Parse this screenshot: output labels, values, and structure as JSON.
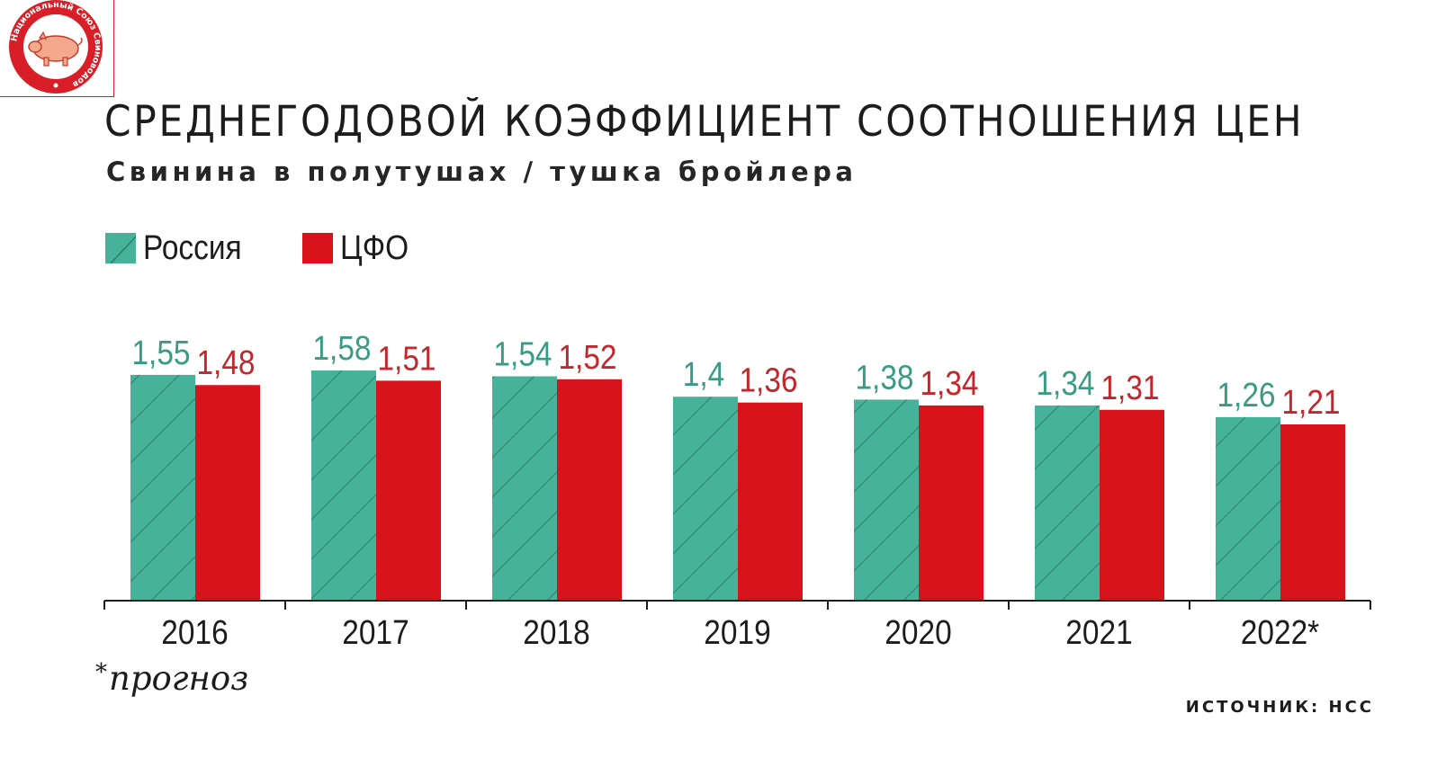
{
  "logo": {
    "text": "Национальный Союз Свиноводов",
    "colors": {
      "primary": "#d81e27",
      "pig": "#f4a88c"
    }
  },
  "title": "СРЕДНЕГОДОВОЙ КОЭФФИЦИЕНТ СООТНОШЕНИЯ ЦЕН",
  "subtitle": "Свинина в полутушах / тушка бройлера",
  "footnote": {
    "mark": "*",
    "text": "прогноз"
  },
  "source": "ИСТОЧНИК: НСС",
  "chart_data": {
    "type": "bar",
    "title": "СРЕДНЕГОДОВОЙ КОЭФФИЦИЕНТ СООТНОШЕНИЯ ЦЕН",
    "subtitle": "Свинина в полутушах / тушка бройлера",
    "categories": [
      "2016",
      "2017",
      "2018",
      "2019",
      "2020",
      "2021",
      "2022*"
    ],
    "series": [
      {
        "name": "Россия",
        "values": [
          1.55,
          1.58,
          1.54,
          1.4,
          1.38,
          1.34,
          1.26
        ],
        "labels": [
          "1,55",
          "1,58",
          "1,54",
          "1,4",
          "1,38",
          "1,34",
          "1,26"
        ],
        "color": "#46b29a",
        "label_color": "#3a9b84",
        "pattern": "diagonal-hatch"
      },
      {
        "name": "ЦФО",
        "values": [
          1.48,
          1.51,
          1.52,
          1.36,
          1.34,
          1.31,
          1.21
        ],
        "labels": [
          "1,48",
          "1,51",
          "1,52",
          "1,36",
          "1,34",
          "1,31",
          "1,21"
        ],
        "color": "#d7141b",
        "label_color": "#c2272d",
        "pattern": "solid"
      }
    ],
    "y_axis_visible": false,
    "grid": false,
    "legend_position": "top-left",
    "data_labels": true
  }
}
